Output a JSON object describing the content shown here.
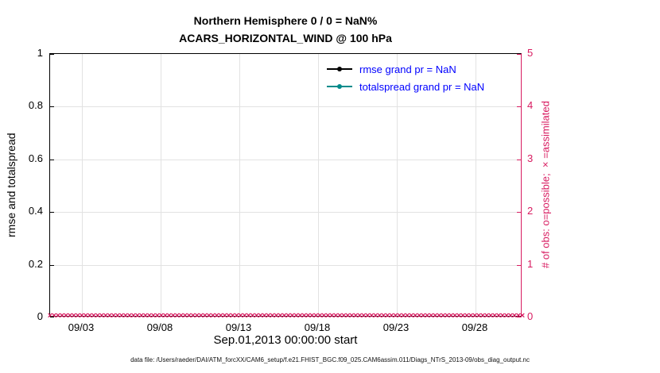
{
  "figure": {
    "footer": "data file: /Users/raeder/DAI/ATM_forcXX/CAM6_setup/f.e21.FHIST_BGC.f09_025.CAM6assim.011/Diags_NTrS_2013-09/obs_diag_output.nc"
  },
  "chart_data": {
    "type": "line",
    "title": "Northern Hemisphere 0 / 0 = NaN%",
    "subtitle": "ACARS_HORIZONTAL_WIND @ 100 hPa",
    "grid": true,
    "legend_position": "inside upper center-right, no box",
    "legend_text_color": "#0000ff",
    "x_axis": {
      "label": "Sep.01,2013 00:00:00 start",
      "domain_days": [
        1,
        31
      ],
      "tick_days": [
        3,
        8,
        13,
        18,
        23,
        28
      ],
      "tick_labels": [
        "09/03",
        "09/08",
        "09/13",
        "09/18",
        "09/23",
        "09/28"
      ]
    },
    "left_axis": {
      "label": "rmse and totalspread",
      "min": 0,
      "max": 1,
      "tick_values": [
        0,
        0.2,
        0.4,
        0.6,
        0.8,
        1
      ],
      "tick_labels": [
        "0",
        "0.2",
        "0.4",
        "0.6",
        "0.8",
        "1"
      ],
      "color": "#000000"
    },
    "right_axis": {
      "label": "# of obs: o=possible; ×=assimilated",
      "min": 0,
      "max": 5,
      "tick_values": [
        0,
        1,
        2,
        3,
        4,
        5
      ],
      "tick_labels": [
        "0",
        "1",
        "2",
        "3",
        "4",
        "5"
      ],
      "color": "#d81b60"
    },
    "series": [
      {
        "name": "rmse grand pr = NaN",
        "color": "#000000",
        "values": []
      },
      {
        "name": "totalspread grand pr = NaN",
        "color": "#008b8b",
        "values": []
      }
    ],
    "obs_counts": {
      "possible": 0,
      "assimilated": 0,
      "value": 0,
      "marker": "×",
      "color": "#d81b60",
      "num_times": 120
    }
  }
}
